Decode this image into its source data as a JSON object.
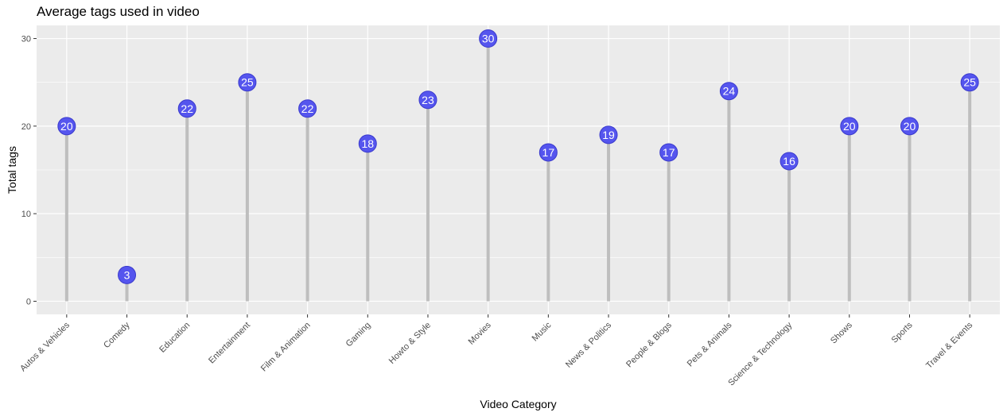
{
  "chart_data": {
    "type": "lollipop",
    "title": "Average tags used in video",
    "xlabel": "Video Category",
    "ylabel": "Total tags",
    "categories": [
      "Autos & Vehicles",
      "Comedy",
      "Education",
      "Entertainment",
      "Film & Animation",
      "Gaming",
      "Howto & Style",
      "Movies",
      "Music",
      "News & Politics",
      "People & Blogs",
      "Pets & Animals",
      "Science & Technology",
      "Shows",
      "Sports",
      "Travel & Events"
    ],
    "values": [
      20,
      3,
      22,
      25,
      22,
      18,
      23,
      30,
      17,
      19,
      17,
      24,
      16,
      20,
      20,
      25
    ],
    "yticks": [
      0,
      10,
      20,
      30
    ],
    "ylim": [
      -1.5,
      31.5
    ],
    "grid": true,
    "colors": {
      "panel": "#ebebeb",
      "grid": "#ffffff",
      "stem": "#bebebe",
      "point": "#5555ee",
      "point_stroke": "#3a3acc",
      "label": "#ffffff"
    }
  }
}
